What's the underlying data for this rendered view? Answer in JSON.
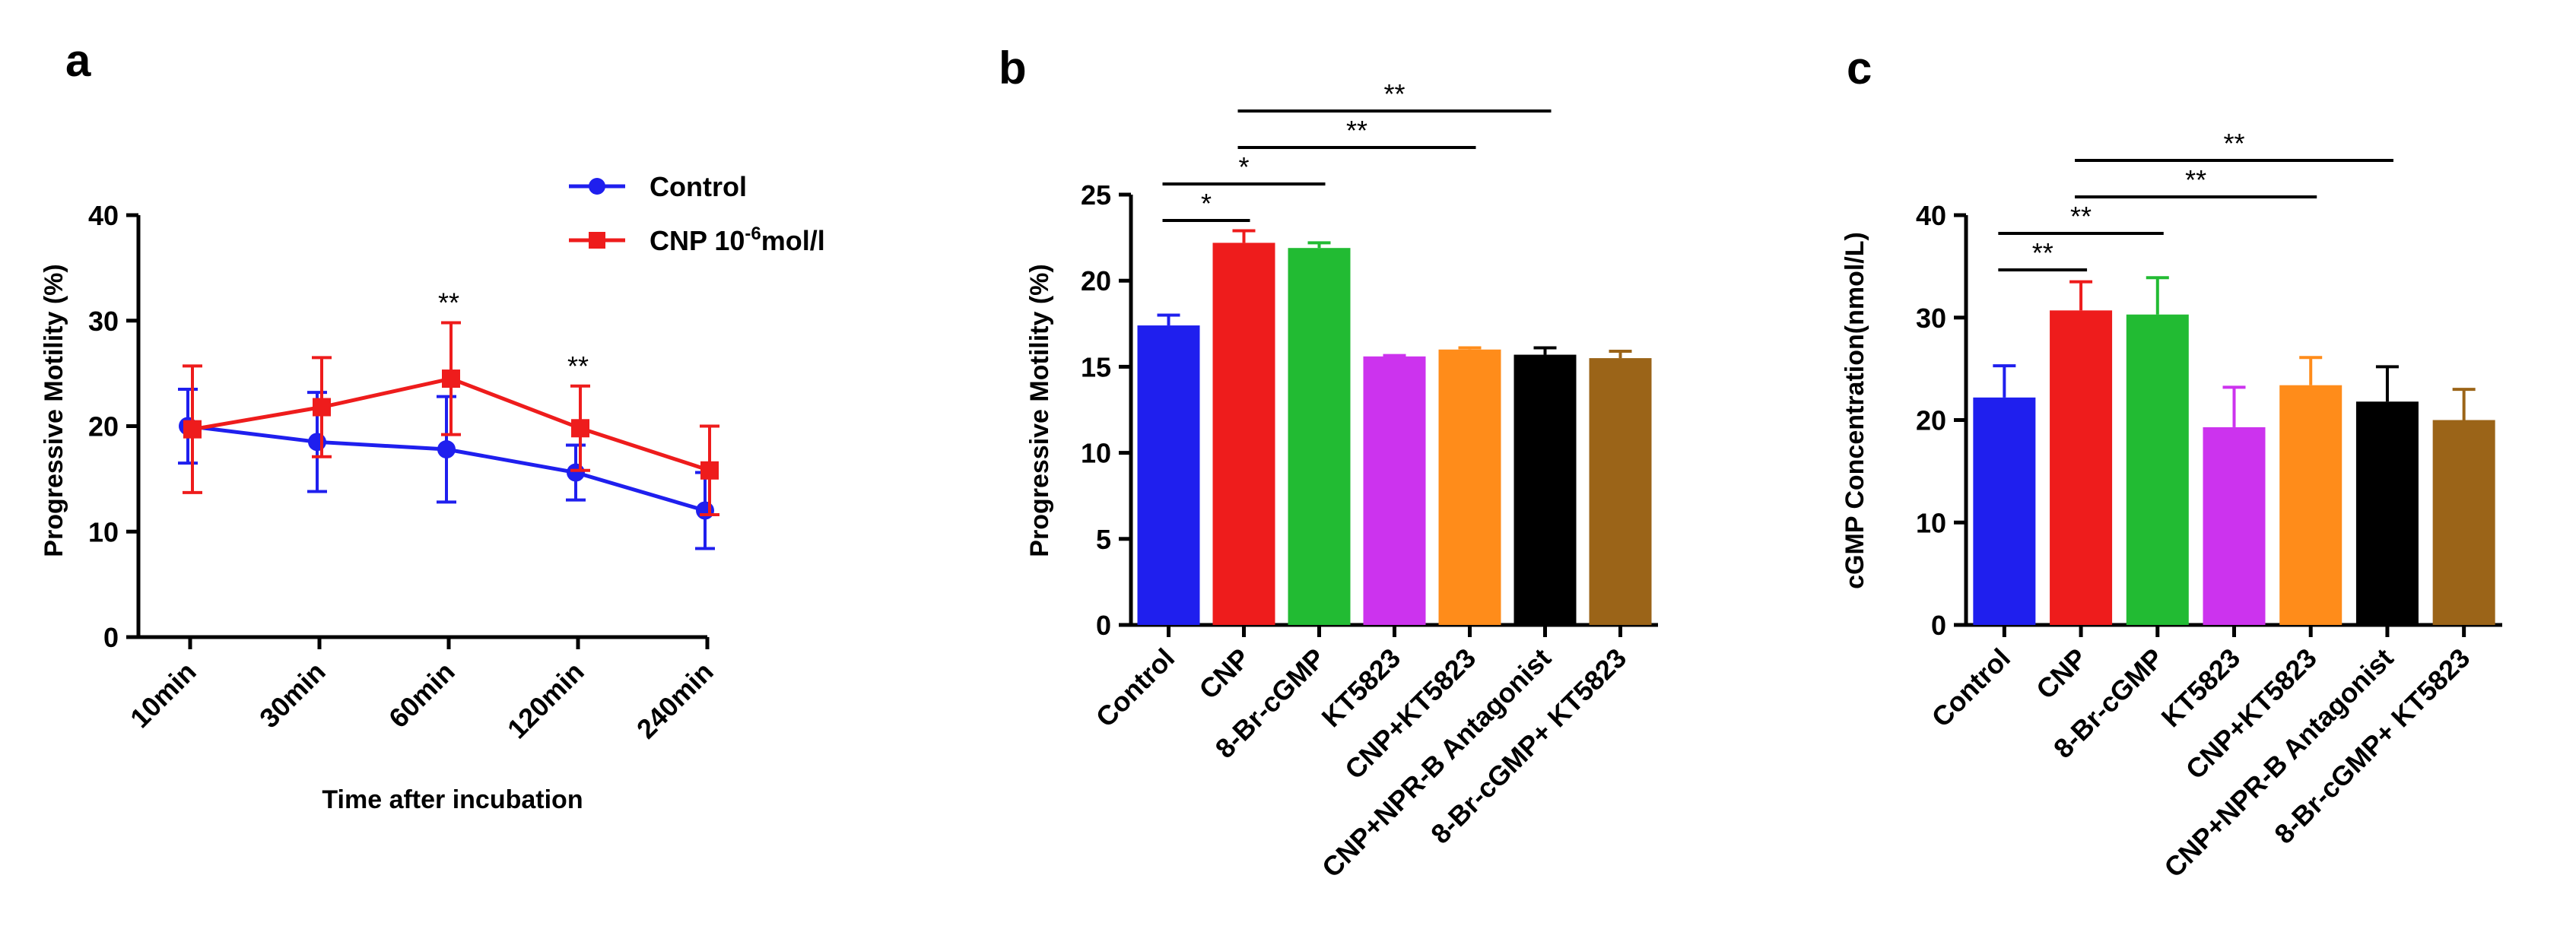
{
  "colors": {
    "blue": "#1f1fee",
    "red": "#ee1c1c",
    "green": "#22bb33",
    "magenta": "#cc33ee",
    "orange": "#ff8c1a",
    "black": "#000000",
    "brown": "#9b6418"
  },
  "chart_data": [
    {
      "panel": "a",
      "type": "line",
      "title": "",
      "xlabel": "Time after incubation",
      "ylabel": "Progressive Motility (%)",
      "categories": [
        "10min",
        "30min",
        "60min",
        "120min",
        "240min"
      ],
      "ylim": [
        0,
        40
      ],
      "yticks": [
        0,
        10,
        20,
        30,
        40
      ],
      "legend_position": "top-right",
      "series": [
        {
          "name": "Control",
          "color": "blue",
          "marker": "circle",
          "values": [
            20,
            18.5,
            17.8,
            15.6,
            12
          ],
          "errors": [
            3.5,
            4.7,
            5,
            2.6,
            3.6
          ]
        },
        {
          "name": "CNP 10",
          "name_sup": "-6",
          "name_tail": "mol/l",
          "color": "red",
          "marker": "square",
          "values": [
            19.7,
            21.8,
            24.5,
            19.8,
            15.8
          ],
          "errors": [
            6,
            4.7,
            5.3,
            4,
            4.2
          ]
        }
      ],
      "annotations": [
        {
          "category": "60min",
          "text": "**"
        },
        {
          "category": "120min",
          "text": "**"
        }
      ]
    },
    {
      "panel": "b",
      "type": "bar",
      "title": "",
      "xlabel": "",
      "ylabel": "Progressive Motility (%)",
      "categories": [
        "Control",
        "CNP",
        "8-Br-cGMP",
        "KT5823",
        "CNP+KT5823",
        "CNP+NPR-B Antagonist",
        "8-Br-cGMP+ KT5823"
      ],
      "values": [
        17.4,
        22.2,
        21.9,
        15.6,
        16,
        15.7,
        15.5
      ],
      "errors": [
        0.6,
        0.7,
        0.3,
        0.05,
        0.1,
        0.4,
        0.4
      ],
      "bar_colors": [
        "blue",
        "red",
        "green",
        "magenta",
        "orange",
        "black",
        "brown"
      ],
      "ylim": [
        0,
        25
      ],
      "yticks": [
        0,
        5,
        10,
        15,
        20,
        25
      ],
      "comparisons": [
        {
          "from": "Control",
          "to": "CNP",
          "text": "*"
        },
        {
          "from": "Control",
          "to": "8-Br-cGMP",
          "text": "*"
        },
        {
          "from": "CNP",
          "to": "CNP+KT5823",
          "text": "**"
        },
        {
          "from": "CNP",
          "to": "CNP+NPR-B Antagonist",
          "text": "**"
        }
      ]
    },
    {
      "panel": "c",
      "type": "bar",
      "title": "",
      "xlabel": "",
      "ylabel": "cGMP Concentration(nmol/L)",
      "categories": [
        "Control",
        "CNP",
        "8-Br-cGMP",
        "KT5823",
        "CNP+KT5823",
        "CNP+NPR-B Antagonist",
        "8-Br-cGMP+ KT5823"
      ],
      "values": [
        22.2,
        30.7,
        30.3,
        19.3,
        23.4,
        21.8,
        20
      ],
      "errors": [
        3.1,
        2.8,
        3.6,
        3.9,
        2.7,
        3.4,
        3
      ],
      "bar_colors": [
        "blue",
        "red",
        "green",
        "magenta",
        "orange",
        "black",
        "brown"
      ],
      "ylim": [
        0,
        40
      ],
      "yticks": [
        0,
        10,
        20,
        30,
        40
      ],
      "comparisons": [
        {
          "from": "Control",
          "to": "CNP",
          "text": "**"
        },
        {
          "from": "Control",
          "to": "8-Br-cGMP",
          "text": "**"
        },
        {
          "from": "CNP",
          "to": "CNP+KT5823",
          "text": "**"
        },
        {
          "from": "CNP",
          "to": "CNP+NPR-B Antagonist",
          "text": "**"
        }
      ]
    }
  ]
}
